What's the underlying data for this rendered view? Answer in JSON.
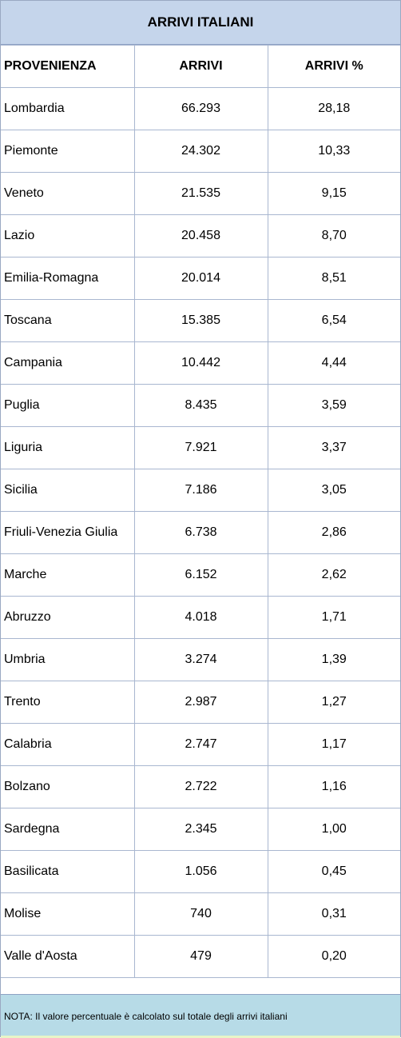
{
  "title": "ARRIVI ITALIANI",
  "headers": [
    "PROVENIENZA",
    "ARRIVI",
    "ARRIVI %"
  ],
  "rows": [
    [
      "Lombardia",
      "66.293",
      "28,18"
    ],
    [
      "Piemonte",
      "24.302",
      "10,33"
    ],
    [
      "Veneto",
      "21.535",
      "9,15"
    ],
    [
      "Lazio",
      "20.458",
      "8,70"
    ],
    [
      "Emilia-Romagna",
      "20.014",
      "8,51"
    ],
    [
      "Toscana",
      "15.385",
      "6,54"
    ],
    [
      "Campania",
      "10.442",
      "4,44"
    ],
    [
      "Puglia",
      "8.435",
      "3,59"
    ],
    [
      "Liguria",
      "7.921",
      "3,37"
    ],
    [
      "Sicilia",
      "7.186",
      "3,05"
    ],
    [
      "Friuli-Venezia Giulia",
      "6.738",
      "2,86"
    ],
    [
      "Marche",
      "6.152",
      "2,62"
    ],
    [
      "Abruzzo",
      "4.018",
      "1,71"
    ],
    [
      "Umbria",
      "3.274",
      "1,39"
    ],
    [
      "Trento",
      "2.987",
      "1,27"
    ],
    [
      "Calabria",
      "2.747",
      "1,17"
    ],
    [
      "Bolzano",
      "2.722",
      "1,16"
    ],
    [
      "Sardegna",
      "2.345",
      "1,00"
    ],
    [
      "Basilicata",
      "1.056",
      "0,45"
    ],
    [
      "Molise",
      "740",
      "0,31"
    ],
    [
      "Valle d'Aosta",
      "479",
      "0,20"
    ]
  ],
  "note": "NOTA: Il valore percentuale è calcolato sul totale degli arrivi italiani",
  "colors": {
    "title_bg": "#c5d5eb",
    "note_bg": "#b7dbe7",
    "grid": "#a9b7d0"
  }
}
